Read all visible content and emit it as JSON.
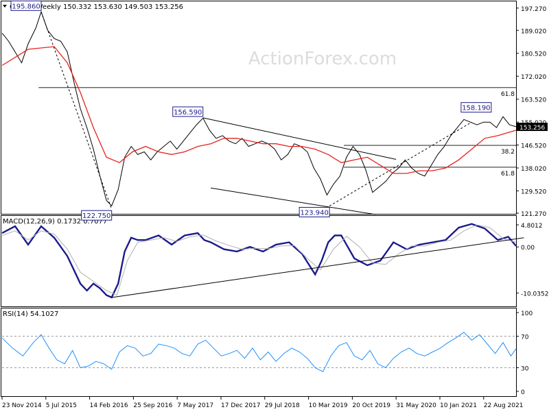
{
  "header": {
    "symbol": "GBPJPY,Weekly",
    "ohlc": "150.332 153.630 149.503 153.256"
  },
  "watermark": "ActionForex.com",
  "colors": {
    "price": "#000000",
    "ma": "#e8201e",
    "macd": "#1a1a8c",
    "macd_signal": "#b0b0b0",
    "rsi": "#1e90ff",
    "last_price_bg": "#000000",
    "label_box": "#1a1a8c",
    "grid_dashed": "#9a9a9a",
    "watermark": "#dcdcdc"
  },
  "chart_data": [
    {
      "type": "line",
      "panel": "price",
      "ylim": [
        121.27,
        199.5
      ],
      "yticks": [
        "197.270",
        "189.020",
        "180.520",
        "172.020",
        "163.520",
        "155.020",
        "146.520",
        "138.020",
        "129.520",
        "121.270"
      ],
      "last_price": "153.256",
      "x_dates": [
        "23 Nov 2014",
        "5 Jul 2015",
        "14 Feb 2016",
        "25 Sep 2016",
        "7 May 2017",
        "17 Dec 2017",
        "29 Jul 2018",
        "10 Mar 2019",
        "20 Oct 2019",
        "31 May 2020",
        "10 Jan 2021",
        "22 Aug 2021"
      ],
      "series": [
        {
          "role": "price",
          "x": [
            0,
            5,
            10,
            15,
            20,
            26,
            30,
            35,
            40,
            45,
            50,
            55,
            60,
            65,
            70,
            75,
            80,
            84,
            89,
            94,
            99,
            104,
            109,
            114,
            119,
            124,
            129,
            134,
            139,
            144,
            149,
            154,
            159,
            164,
            169,
            174,
            179,
            184,
            189,
            194,
            199,
            204,
            209,
            214,
            219,
            224,
            229,
            234,
            239,
            244,
            249,
            254,
            259,
            264,
            269,
            274,
            279,
            284,
            289,
            294,
            299,
            304,
            309,
            314,
            319,
            324,
            329,
            334,
            339,
            344,
            349,
            354,
            359,
            364,
            369,
            374,
            379,
            384,
            389,
            394
          ],
          "values": [
            188,
            185,
            181,
            177,
            184,
            190,
            195.9,
            189,
            186,
            185,
            181,
            170,
            160,
            153,
            145,
            135,
            126,
            124,
            130,
            142,
            146,
            143,
            144,
            141,
            144,
            146,
            148,
            145,
            148,
            151,
            154,
            156.5,
            152,
            149,
            150,
            148,
            147,
            149,
            146,
            147,
            148,
            147,
            145,
            141,
            143,
            147,
            146,
            144,
            138,
            134,
            128,
            132,
            135,
            142,
            146,
            143,
            137,
            129,
            131,
            133,
            136,
            138,
            141,
            138,
            136,
            135,
            139,
            143,
            146,
            150,
            153,
            156,
            155,
            154,
            155,
            155,
            153,
            157,
            154,
            153.3
          ]
        },
        {
          "role": "ma",
          "x": [
            0,
            20,
            40,
            50,
            60,
            70,
            80,
            90,
            100,
            110,
            120,
            130,
            140,
            150,
            160,
            170,
            180,
            190,
            200,
            210,
            220,
            230,
            240,
            250,
            260,
            270,
            280,
            290,
            300,
            310,
            320,
            330,
            340,
            350,
            360,
            370,
            380,
            394
          ],
          "values": [
            176,
            182,
            183,
            177,
            166,
            153,
            142,
            140,
            144,
            146,
            144,
            143,
            144,
            146,
            147,
            149,
            149,
            148,
            147,
            147,
            146,
            146,
            145,
            143,
            140,
            141,
            142,
            139,
            136,
            136,
            137,
            137,
            138,
            141,
            145,
            149,
            150,
            152
          ]
        }
      ],
      "annotations": [
        {
          "label": "195.860",
          "x": 30,
          "value": 195.86,
          "dir": "up",
          "anchor": "right"
        },
        {
          "label": "122.750",
          "x": 84,
          "value": 122.75,
          "dir": "down",
          "anchor": "right"
        },
        {
          "label": "156.590",
          "x": 154,
          "value": 156.59,
          "dir": "up",
          "anchor": "right"
        },
        {
          "label": "123.940",
          "x": 251,
          "value": 123.94,
          "dir": "down",
          "anchor": "right"
        },
        {
          "label": "158.190",
          "x": 375,
          "value": 158.19,
          "dir": "up",
          "anchor": "right"
        }
      ],
      "fib_levels": [
        {
          "label": "61.8",
          "value": 167.8,
          "x_start": 28
        },
        {
          "label": "38.2",
          "value": 146.4,
          "x_start": 262
        },
        {
          "label": "61.8",
          "value": 138.3,
          "x_start": 262
        }
      ],
      "trendlines": [
        {
          "style": "solid",
          "x": [
            154,
            302
          ],
          "values": [
            156.6,
            141.2
          ]
        },
        {
          "style": "solid",
          "x": [
            160,
            286
          ],
          "values": [
            130.6,
            120.8
          ]
        },
        {
          "style": "dashed",
          "x": [
            30,
            84
          ],
          "values": [
            195.86,
            122.75
          ]
        },
        {
          "style": "dashed",
          "x": [
            251,
            360
          ],
          "values": [
            123.94,
            155.0
          ]
        }
      ]
    },
    {
      "type": "line",
      "panel": "macd",
      "title": "MACD(12,26,9) 0.1732 0.7077",
      "ylim": [
        -12.5,
        6.3
      ],
      "yticks": [
        "4.8012",
        "0.00",
        "-10.0352"
      ],
      "series": [
        {
          "role": "macd",
          "x": [
            0,
            10,
            20,
            30,
            40,
            50,
            55,
            60,
            65,
            70,
            75,
            80,
            84,
            89,
            94,
            99,
            104,
            110,
            120,
            130,
            140,
            150,
            155,
            160,
            170,
            180,
            190,
            200,
            210,
            220,
            230,
            240,
            245,
            250,
            255,
            260,
            270,
            280,
            290,
            300,
            310,
            320,
            330,
            340,
            350,
            360,
            370,
            380,
            388,
            394
          ],
          "values": [
            3,
            4.5,
            0.5,
            4.5,
            2,
            -2,
            -5,
            -8,
            -9.5,
            -8,
            -9,
            -10.5,
            -11,
            -8,
            -1,
            2,
            1.5,
            1.5,
            2.5,
            0.5,
            2.5,
            3,
            1.5,
            1,
            -0.5,
            -1,
            0,
            -1,
            0.5,
            1,
            -1.5,
            -6,
            -3,
            1,
            2.5,
            2.5,
            -2.5,
            -4,
            -3,
            1,
            -0.5,
            0.5,
            1,
            1.5,
            4.2,
            5,
            4,
            1.5,
            2.2,
            0.2
          ]
        },
        {
          "role": "signal",
          "x": [
            0,
            10,
            20,
            30,
            40,
            50,
            60,
            70,
            80,
            88,
            96,
            104,
            114,
            124,
            134,
            144,
            154,
            164,
            174,
            184,
            194,
            204,
            214,
            224,
            234,
            244,
            254,
            264,
            274,
            284,
            294,
            304,
            314,
            324,
            334,
            344,
            354,
            364,
            374,
            384,
            394
          ],
          "values": [
            2.5,
            3.5,
            1.5,
            3.5,
            2.8,
            -0.5,
            -5.5,
            -7.5,
            -9.5,
            -10.5,
            -3,
            1,
            1.5,
            2,
            1.2,
            2.2,
            2.6,
            1.3,
            0.3,
            -0.5,
            -0.3,
            -0.4,
            0.2,
            0.3,
            -2.5,
            -5,
            -0.5,
            2.3,
            0,
            -3.5,
            -3.8,
            -1.5,
            0.2,
            0.2,
            1,
            1.5,
            3.5,
            4.8,
            4.2,
            1.8,
            1
          ]
        }
      ],
      "trendlines": [
        {
          "style": "solid",
          "x": [
            84,
            400
          ],
          "values": [
            -11,
            2
          ]
        }
      ]
    },
    {
      "type": "line",
      "panel": "rsi",
      "title": "RSI(14) 54.1027",
      "ylim": [
        0,
        100
      ],
      "yticks": [
        "100",
        "70",
        "30",
        "0"
      ],
      "levels": [
        70,
        30
      ],
      "series": [
        {
          "role": "rsi",
          "x": [
            0,
            8,
            16,
            24,
            30,
            36,
            42,
            48,
            54,
            60,
            66,
            72,
            78,
            84,
            90,
            96,
            102,
            108,
            114,
            120,
            126,
            132,
            138,
            144,
            150,
            156,
            162,
            168,
            174,
            180,
            186,
            192,
            198,
            204,
            210,
            216,
            222,
            228,
            234,
            240,
            246,
            252,
            258,
            264,
            270,
            276,
            282,
            288,
            294,
            300,
            306,
            312,
            318,
            324,
            330,
            336,
            342,
            348,
            354,
            360,
            366,
            372,
            378,
            384,
            390,
            394
          ],
          "values": [
            68,
            55,
            45,
            62,
            72,
            55,
            40,
            35,
            52,
            30,
            32,
            38,
            35,
            28,
            50,
            58,
            55,
            45,
            48,
            60,
            58,
            55,
            48,
            45,
            60,
            65,
            55,
            45,
            48,
            52,
            42,
            55,
            40,
            50,
            38,
            48,
            55,
            50,
            42,
            30,
            25,
            45,
            58,
            62,
            45,
            40,
            52,
            35,
            30,
            42,
            50,
            55,
            48,
            45,
            50,
            55,
            62,
            68,
            75,
            65,
            72,
            60,
            48,
            62,
            45,
            54
          ]
        }
      ]
    }
  ]
}
